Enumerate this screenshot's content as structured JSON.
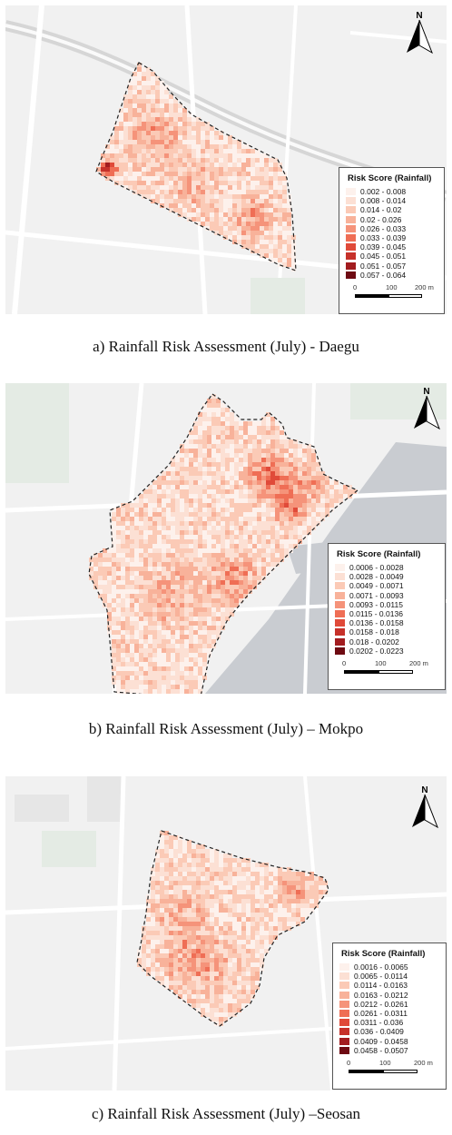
{
  "panels": [
    {
      "id": "daegu",
      "caption": "a) Rainfall Risk Assessment (July) - Daegu",
      "legend": {
        "title": "Risk Score (Rainfall)",
        "classes": [
          "0.002 - 0.008",
          "0.008 - 0.014",
          "0.014 - 0.02",
          "0.02 - 0.026",
          "0.026 - 0.033",
          "0.033 - 0.039",
          "0.039 - 0.045",
          "0.045 - 0.051",
          "0.051 - 0.057",
          "0.057 - 0.064"
        ],
        "scale_labels": [
          "0",
          "100",
          "200 m"
        ]
      }
    },
    {
      "id": "mokpo",
      "caption": "b) Rainfall Risk Assessment (July) – Mokpo",
      "legend": {
        "title": "Risk Score (Rainfall)",
        "classes": [
          "0.0006 - 0.0028",
          "0.0028 - 0.0049",
          "0.0049 - 0.0071",
          "0.0071 - 0.0093",
          "0.0093 - 0.0115",
          "0.0115 - 0.0136",
          "0.0136 - 0.0158",
          "0.0158 - 0.018",
          "0.018 - 0.0202",
          "0.0202 - 0.0223"
        ],
        "scale_labels": [
          "0",
          "100",
          "200 m"
        ]
      }
    },
    {
      "id": "seosan",
      "caption": "c) Rainfall Risk Assessment (July) –Seosan",
      "legend": {
        "title": "Risk Score (Rainfall)",
        "classes": [
          "0.0016 - 0.0065",
          "0.0065 - 0.0114",
          "0.0114 - 0.0163",
          "0.0163 - 0.0212",
          "0.0212 - 0.0261",
          "0.0261 - 0.0311",
          "0.0311 - 0.036",
          "0.036 - 0.0409",
          "0.0409 - 0.0458",
          "0.0458 - 0.0507"
        ],
        "scale_labels": [
          "0",
          "100",
          "200 m"
        ]
      }
    }
  ],
  "class_colors": [
    "#fdf1ec",
    "#fce0d4",
    "#fbcab6",
    "#f8b29a",
    "#f5937a",
    "#ef6e55",
    "#e04a39",
    "#c6312a",
    "#a21c1f",
    "#6e0a12"
  ],
  "icons": {
    "north_arrow": "north-arrow-icon"
  }
}
